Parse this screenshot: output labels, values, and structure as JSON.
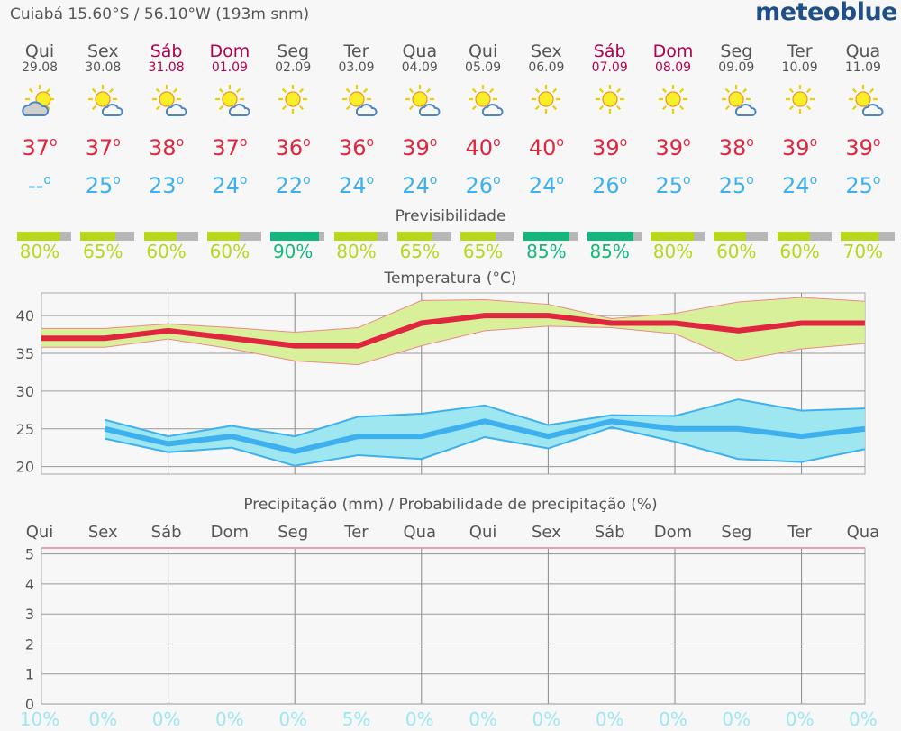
{
  "header": {
    "location": "Cuiabá  15.60°S / 56.10°W (193m snm)",
    "logo": "meteoblue"
  },
  "colors": {
    "max": "#e0263f",
    "min": "#3fb0ee",
    "weekend": "#b2004e",
    "good": "#b8d61a",
    "best": "#13b77b"
  },
  "days": [
    {
      "name": "Qui",
      "date": "29.08",
      "icon": "cloud-sun-grey-icon",
      "max": "37",
      "min": "--",
      "pred": 80,
      "prec": "10%",
      "we": false
    },
    {
      "name": "Sex",
      "date": "30.08",
      "icon": "sun-cloud-icon",
      "max": "37",
      "min": "25",
      "pred": 65,
      "prec": "0%",
      "we": false
    },
    {
      "name": "Sáb",
      "date": "31.08",
      "icon": "sun-cloud-icon",
      "max": "38",
      "min": "23",
      "pred": 60,
      "prec": "0%",
      "we": true
    },
    {
      "name": "Dom",
      "date": "01.09",
      "icon": "sun-cloud-icon",
      "max": "37",
      "min": "24",
      "pred": 60,
      "prec": "0%",
      "we": true
    },
    {
      "name": "Seg",
      "date": "02.09",
      "icon": "sun-icon",
      "max": "36",
      "min": "22",
      "pred": 90,
      "prec": "0%",
      "we": false
    },
    {
      "name": "Ter",
      "date": "03.09",
      "icon": "sun-cloud-icon",
      "max": "36",
      "min": "24",
      "pred": 80,
      "prec": "5%",
      "we": false
    },
    {
      "name": "Qua",
      "date": "04.09",
      "icon": "sun-cloud-icon",
      "max": "39",
      "min": "24",
      "pred": 65,
      "prec": "0%",
      "we": false
    },
    {
      "name": "Qui",
      "date": "05.09",
      "icon": "sun-cloud-icon",
      "max": "40",
      "min": "26",
      "pred": 65,
      "prec": "0%",
      "we": false
    },
    {
      "name": "Sex",
      "date": "06.09",
      "icon": "sun-icon",
      "max": "40",
      "min": "24",
      "pred": 85,
      "prec": "0%",
      "we": false
    },
    {
      "name": "Sáb",
      "date": "07.09",
      "icon": "sun-icon",
      "max": "39",
      "min": "26",
      "pred": 85,
      "prec": "0%",
      "we": true
    },
    {
      "name": "Dom",
      "date": "08.09",
      "icon": "sun-icon",
      "max": "39",
      "min": "25",
      "pred": 80,
      "prec": "0%",
      "we": true
    },
    {
      "name": "Seg",
      "date": "09.09",
      "icon": "sun-cloud-icon",
      "max": "38",
      "min": "25",
      "pred": 60,
      "prec": "0%",
      "we": false
    },
    {
      "name": "Ter",
      "date": "10.09",
      "icon": "sun-icon",
      "max": "39",
      "min": "24",
      "pred": 60,
      "prec": "0%",
      "we": false
    },
    {
      "name": "Qua",
      "date": "11.09",
      "icon": "sun-cloud-icon",
      "max": "39",
      "min": "25",
      "pred": 70,
      "prec": "0%",
      "we": false
    }
  ],
  "labels": {
    "predict": "Previsibilidade",
    "temp": "Temperatura (°C)",
    "precip": "Precipitação (mm) / Probabilidade de precipitação (%)",
    "deg": "o"
  },
  "chart_data": [
    {
      "type": "area",
      "title": "Temperatura (°C)",
      "ylim": [
        19,
        43
      ],
      "yticks": [
        20,
        25,
        30,
        35,
        40
      ],
      "series": [
        {
          "values": [
            37,
            37,
            38,
            37,
            36,
            36,
            39,
            40,
            40,
            39,
            39,
            38,
            39,
            39
          ],
          "upper": [
            38.3,
            38.3,
            38.9,
            38.4,
            37.8,
            38.4,
            42,
            42.1,
            41.5,
            39.6,
            40.3,
            41.8,
            42.4,
            41.9
          ],
          "lower": [
            35.8,
            35.8,
            36.9,
            35.6,
            34,
            33.5,
            36,
            38,
            38.6,
            38.4,
            37.6,
            34,
            35.6,
            36.3
          ]
        },
        {
          "values": [
            null,
            25,
            23,
            24,
            22,
            24,
            24,
            26,
            24,
            26,
            25,
            25,
            24,
            25
          ],
          "upper": [
            null,
            26.2,
            24,
            25.4,
            24,
            26.6,
            27,
            28.1,
            25.5,
            26.8,
            26.7,
            28.9,
            27.4,
            27.7
          ],
          "lower": [
            null,
            23.7,
            21.9,
            22.5,
            20.1,
            21.5,
            21,
            23.9,
            22.4,
            25.2,
            23.3,
            21,
            20.6,
            22.3
          ]
        }
      ]
    },
    {
      "type": "bar",
      "title": "Precipitação (mm) / Probabilidade de precipitação (%)",
      "ylim": [
        0,
        5.2
      ],
      "yticks": [
        0,
        1,
        2,
        3,
        4,
        5
      ],
      "values": [
        0,
        0,
        0,
        0,
        0,
        0,
        0,
        0,
        0,
        0,
        0,
        0,
        0,
        0
      ]
    }
  ]
}
